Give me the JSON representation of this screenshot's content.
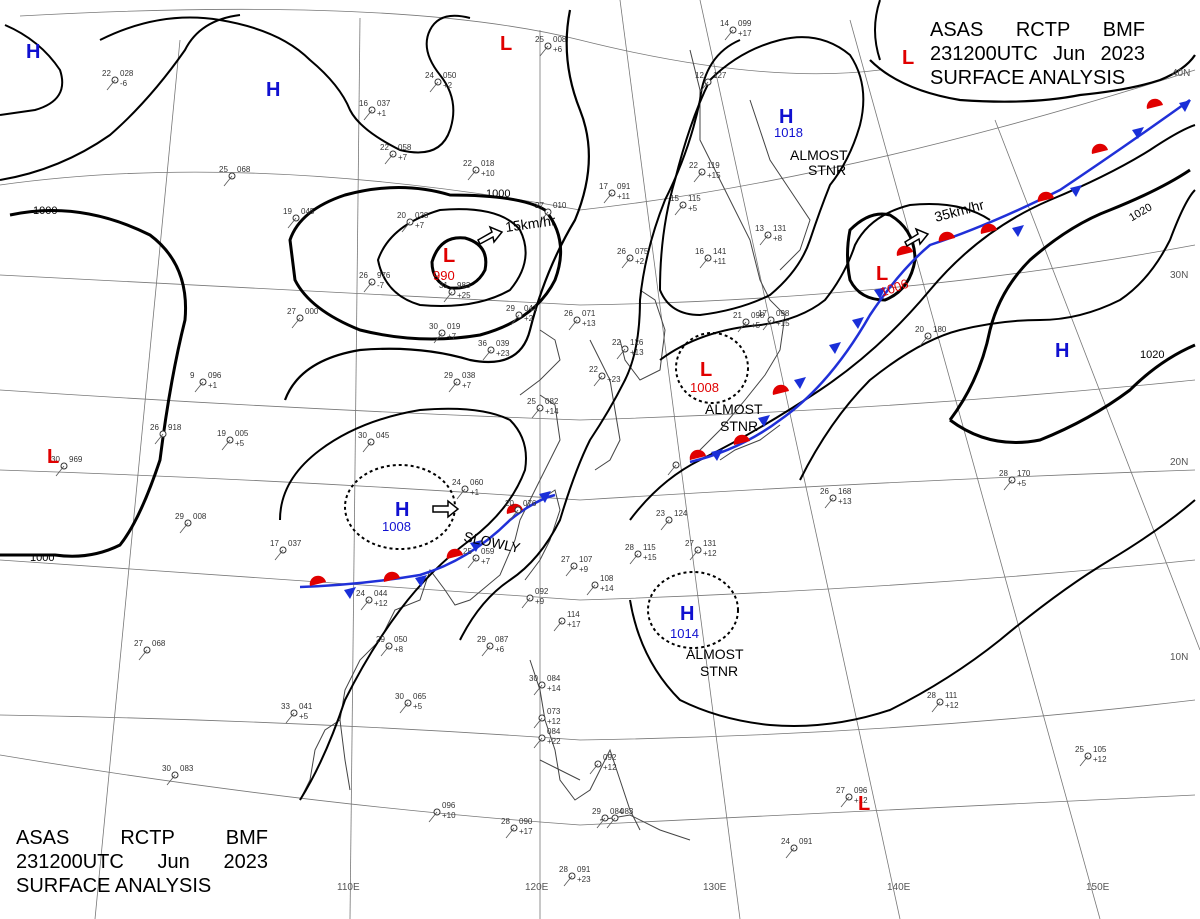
{
  "header": {
    "line1": [
      "ASAS",
      "RCTP",
      "BMF"
    ],
    "line2": [
      "231200UTC",
      "Jun",
      "2023"
    ],
    "line3": "SURFACE ANALYSIS"
  },
  "colors": {
    "high": "#1010d0",
    "low": "#e00000",
    "front_cold": "#1a2fd8",
    "front_warm": "#e00000",
    "isobar": "#000000",
    "coast": "#333333",
    "grid": "#666666"
  },
  "isobar_labels": [
    "1000",
    "1000",
    "1000",
    "1020",
    "1020"
  ],
  "lat_labels": [
    "40N",
    "30N",
    "20N",
    "10N"
  ],
  "lon_labels": [
    "110E",
    "120E",
    "130E",
    "140E",
    "150E"
  ],
  "pressure_systems": [
    {
      "type": "H",
      "value": ""
    },
    {
      "type": "H",
      "value": ""
    },
    {
      "type": "H",
      "value": "1018"
    },
    {
      "type": "H",
      "value": ""
    },
    {
      "type": "H",
      "value": "1008"
    },
    {
      "type": "H",
      "value": "1014"
    },
    {
      "type": "L",
      "value": ""
    },
    {
      "type": "L",
      "value": "990"
    },
    {
      "type": "L",
      "value": "1008"
    },
    {
      "type": "L",
      "value": "1006"
    },
    {
      "type": "L",
      "value": ""
    },
    {
      "type": "L",
      "value": ""
    },
    {
      "type": "L",
      "value": ""
    }
  ],
  "annotations": [
    "15km/hr",
    "35km/hr",
    "ALMOST",
    "STNR",
    "ALMOST",
    "STNR",
    "ALMOST",
    "STNR",
    "SLOWLY"
  ],
  "stations": [
    {
      "t": "25",
      "p": "008",
      "d": "+6"
    },
    {
      "t": "22",
      "p": "028",
      "d": "-6"
    },
    {
      "t": "24",
      "p": "050",
      "d": "+2"
    },
    {
      "t": "16",
      "p": "037",
      "d": "+1"
    },
    {
      "t": "22",
      "p": "058",
      "d": "+7"
    },
    {
      "t": "22",
      "p": "018",
      "d": "+10"
    },
    {
      "t": "25",
      "p": "068",
      "d": ""
    },
    {
      "t": "19",
      "p": "045",
      "d": ""
    },
    {
      "t": "20",
      "p": "028",
      "d": "+7"
    },
    {
      "t": "27",
      "p": "010",
      "d": ""
    },
    {
      "t": "17",
      "p": "091",
      "d": "+11"
    },
    {
      "t": "26",
      "p": "976",
      "d": "-7"
    },
    {
      "t": "31",
      "p": "983",
      "d": "+25"
    },
    {
      "t": "27",
      "p": "000",
      "d": ""
    },
    {
      "t": "30",
      "p": "019",
      "d": "+7"
    },
    {
      "t": "29",
      "p": "041",
      "d": "+2"
    },
    {
      "t": "26",
      "p": "071",
      "d": "+13"
    },
    {
      "t": "36",
      "p": "039",
      "d": "+23"
    },
    {
      "t": "22",
      "p": "126",
      "d": "+13"
    },
    {
      "t": "22",
      "p": "",
      "d": "+23"
    },
    {
      "t": "26",
      "p": "075",
      "d": "+2"
    },
    {
      "t": "16",
      "p": "141",
      "d": "+11"
    },
    {
      "t": "15",
      "p": "115",
      "d": "+5"
    },
    {
      "t": "22",
      "p": "119",
      "d": "+15"
    },
    {
      "t": "13",
      "p": "131",
      "d": "+8"
    },
    {
      "t": "17",
      "p": "098",
      "d": "+15"
    },
    {
      "t": "21",
      "p": "098",
      "d": "+5"
    },
    {
      "t": "29",
      "p": "038",
      "d": "+7"
    },
    {
      "t": "9",
      "p": "096",
      "d": "+1"
    },
    {
      "t": "25",
      "p": "082",
      "d": "+14"
    },
    {
      "t": "30",
      "p": "045",
      "d": ""
    },
    {
      "t": "19",
      "p": "005",
      "d": "+5"
    },
    {
      "t": "26",
      "p": "918",
      "d": ""
    },
    {
      "t": "30",
      "p": "969",
      "d": ""
    },
    {
      "t": "29",
      "p": "008",
      "d": ""
    },
    {
      "t": "24",
      "p": "060",
      "d": "+1"
    },
    {
      "t": "20",
      "p": "076",
      "d": ""
    },
    {
      "t": "25",
      "p": "059",
      "d": "+7"
    },
    {
      "t": "17",
      "p": "037",
      "d": ""
    },
    {
      "t": "24",
      "p": "044",
      "d": "+12"
    },
    {
      "t": "27",
      "p": "107",
      "d": "+9"
    },
    {
      "t": "",
      "p": "092",
      "d": "+9"
    },
    {
      "t": "",
      "p": "108",
      "d": "+14"
    },
    {
      "t": "",
      "p": "114",
      "d": "+17"
    },
    {
      "t": "23",
      "p": "124",
      "d": ""
    },
    {
      "t": "28",
      "p": "115",
      "d": "+15"
    },
    {
      "t": "27",
      "p": "131",
      "d": "+12"
    },
    {
      "t": "26",
      "p": "168",
      "d": "+13"
    },
    {
      "t": "28",
      "p": "170",
      "d": "+5"
    },
    {
      "t": "20",
      "p": "180",
      "d": ""
    },
    {
      "t": "29",
      "p": "087",
      "d": "+6"
    },
    {
      "t": "29",
      "p": "050",
      "d": "+8"
    },
    {
      "t": "27",
      "p": "068",
      "d": ""
    },
    {
      "t": "30",
      "p": "065",
      "d": "+5"
    },
    {
      "t": "33",
      "p": "041",
      "d": "+5"
    },
    {
      "t": "30",
      "p": "084",
      "d": "+14"
    },
    {
      "t": "",
      "p": "073",
      "d": "+12"
    },
    {
      "t": "",
      "p": "084",
      "d": "+22"
    },
    {
      "t": "",
      "p": "092",
      "d": "+12"
    },
    {
      "t": "28",
      "p": "111",
      "d": "+12"
    },
    {
      "t": "25",
      "p": "105",
      "d": "+12"
    },
    {
      "t": "27",
      "p": "096",
      "d": "+12"
    },
    {
      "t": "30",
      "p": "083",
      "d": ""
    },
    {
      "t": "",
      "p": "096",
      "d": "+10"
    },
    {
      "t": "28",
      "p": "090",
      "d": "+17"
    },
    {
      "t": "29",
      "p": "084",
      "d": ""
    },
    {
      "t": "",
      "p": "083",
      "d": ""
    },
    {
      "t": "24",
      "p": "091",
      "d": ""
    },
    {
      "t": "28",
      "p": "091",
      "d": "+23"
    },
    {
      "t": "12",
      "p": "127",
      "d": ""
    },
    {
      "t": "14",
      "p": "099",
      "d": "+17"
    },
    {
      "t": "",
      "p": "",
      "d": ""
    }
  ]
}
